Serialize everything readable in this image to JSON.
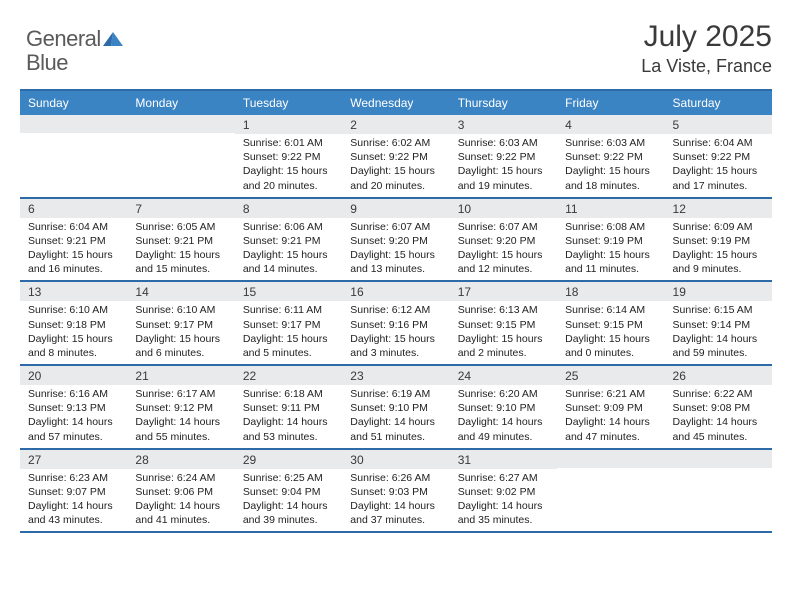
{
  "logo": {
    "part1": "General",
    "part2": "Blue"
  },
  "title": "July 2025",
  "location": "La Viste, France",
  "colors": {
    "header_bg": "#3b84c4",
    "border": "#2d6aa8",
    "daynum_bg": "#e9eaeb",
    "text": "#3a3a3a"
  },
  "day_headers": [
    "Sunday",
    "Monday",
    "Tuesday",
    "Wednesday",
    "Thursday",
    "Friday",
    "Saturday"
  ],
  "weeks": [
    [
      {
        "n": "",
        "sr": "",
        "ss": "",
        "d1": "",
        "d2": ""
      },
      {
        "n": "",
        "sr": "",
        "ss": "",
        "d1": "",
        "d2": ""
      },
      {
        "n": "1",
        "sr": "Sunrise: 6:01 AM",
        "ss": "Sunset: 9:22 PM",
        "d1": "Daylight: 15 hours",
        "d2": "and 20 minutes."
      },
      {
        "n": "2",
        "sr": "Sunrise: 6:02 AM",
        "ss": "Sunset: 9:22 PM",
        "d1": "Daylight: 15 hours",
        "d2": "and 20 minutes."
      },
      {
        "n": "3",
        "sr": "Sunrise: 6:03 AM",
        "ss": "Sunset: 9:22 PM",
        "d1": "Daylight: 15 hours",
        "d2": "and 19 minutes."
      },
      {
        "n": "4",
        "sr": "Sunrise: 6:03 AM",
        "ss": "Sunset: 9:22 PM",
        "d1": "Daylight: 15 hours",
        "d2": "and 18 minutes."
      },
      {
        "n": "5",
        "sr": "Sunrise: 6:04 AM",
        "ss": "Sunset: 9:22 PM",
        "d1": "Daylight: 15 hours",
        "d2": "and 17 minutes."
      }
    ],
    [
      {
        "n": "6",
        "sr": "Sunrise: 6:04 AM",
        "ss": "Sunset: 9:21 PM",
        "d1": "Daylight: 15 hours",
        "d2": "and 16 minutes."
      },
      {
        "n": "7",
        "sr": "Sunrise: 6:05 AM",
        "ss": "Sunset: 9:21 PM",
        "d1": "Daylight: 15 hours",
        "d2": "and 15 minutes."
      },
      {
        "n": "8",
        "sr": "Sunrise: 6:06 AM",
        "ss": "Sunset: 9:21 PM",
        "d1": "Daylight: 15 hours",
        "d2": "and 14 minutes."
      },
      {
        "n": "9",
        "sr": "Sunrise: 6:07 AM",
        "ss": "Sunset: 9:20 PM",
        "d1": "Daylight: 15 hours",
        "d2": "and 13 minutes."
      },
      {
        "n": "10",
        "sr": "Sunrise: 6:07 AM",
        "ss": "Sunset: 9:20 PM",
        "d1": "Daylight: 15 hours",
        "d2": "and 12 minutes."
      },
      {
        "n": "11",
        "sr": "Sunrise: 6:08 AM",
        "ss": "Sunset: 9:19 PM",
        "d1": "Daylight: 15 hours",
        "d2": "and 11 minutes."
      },
      {
        "n": "12",
        "sr": "Sunrise: 6:09 AM",
        "ss": "Sunset: 9:19 PM",
        "d1": "Daylight: 15 hours",
        "d2": "and 9 minutes."
      }
    ],
    [
      {
        "n": "13",
        "sr": "Sunrise: 6:10 AM",
        "ss": "Sunset: 9:18 PM",
        "d1": "Daylight: 15 hours",
        "d2": "and 8 minutes."
      },
      {
        "n": "14",
        "sr": "Sunrise: 6:10 AM",
        "ss": "Sunset: 9:17 PM",
        "d1": "Daylight: 15 hours",
        "d2": "and 6 minutes."
      },
      {
        "n": "15",
        "sr": "Sunrise: 6:11 AM",
        "ss": "Sunset: 9:17 PM",
        "d1": "Daylight: 15 hours",
        "d2": "and 5 minutes."
      },
      {
        "n": "16",
        "sr": "Sunrise: 6:12 AM",
        "ss": "Sunset: 9:16 PM",
        "d1": "Daylight: 15 hours",
        "d2": "and 3 minutes."
      },
      {
        "n": "17",
        "sr": "Sunrise: 6:13 AM",
        "ss": "Sunset: 9:15 PM",
        "d1": "Daylight: 15 hours",
        "d2": "and 2 minutes."
      },
      {
        "n": "18",
        "sr": "Sunrise: 6:14 AM",
        "ss": "Sunset: 9:15 PM",
        "d1": "Daylight: 15 hours",
        "d2": "and 0 minutes."
      },
      {
        "n": "19",
        "sr": "Sunrise: 6:15 AM",
        "ss": "Sunset: 9:14 PM",
        "d1": "Daylight: 14 hours",
        "d2": "and 59 minutes."
      }
    ],
    [
      {
        "n": "20",
        "sr": "Sunrise: 6:16 AM",
        "ss": "Sunset: 9:13 PM",
        "d1": "Daylight: 14 hours",
        "d2": "and 57 minutes."
      },
      {
        "n": "21",
        "sr": "Sunrise: 6:17 AM",
        "ss": "Sunset: 9:12 PM",
        "d1": "Daylight: 14 hours",
        "d2": "and 55 minutes."
      },
      {
        "n": "22",
        "sr": "Sunrise: 6:18 AM",
        "ss": "Sunset: 9:11 PM",
        "d1": "Daylight: 14 hours",
        "d2": "and 53 minutes."
      },
      {
        "n": "23",
        "sr": "Sunrise: 6:19 AM",
        "ss": "Sunset: 9:10 PM",
        "d1": "Daylight: 14 hours",
        "d2": "and 51 minutes."
      },
      {
        "n": "24",
        "sr": "Sunrise: 6:20 AM",
        "ss": "Sunset: 9:10 PM",
        "d1": "Daylight: 14 hours",
        "d2": "and 49 minutes."
      },
      {
        "n": "25",
        "sr": "Sunrise: 6:21 AM",
        "ss": "Sunset: 9:09 PM",
        "d1": "Daylight: 14 hours",
        "d2": "and 47 minutes."
      },
      {
        "n": "26",
        "sr": "Sunrise: 6:22 AM",
        "ss": "Sunset: 9:08 PM",
        "d1": "Daylight: 14 hours",
        "d2": "and 45 minutes."
      }
    ],
    [
      {
        "n": "27",
        "sr": "Sunrise: 6:23 AM",
        "ss": "Sunset: 9:07 PM",
        "d1": "Daylight: 14 hours",
        "d2": "and 43 minutes."
      },
      {
        "n": "28",
        "sr": "Sunrise: 6:24 AM",
        "ss": "Sunset: 9:06 PM",
        "d1": "Daylight: 14 hours",
        "d2": "and 41 minutes."
      },
      {
        "n": "29",
        "sr": "Sunrise: 6:25 AM",
        "ss": "Sunset: 9:04 PM",
        "d1": "Daylight: 14 hours",
        "d2": "and 39 minutes."
      },
      {
        "n": "30",
        "sr": "Sunrise: 6:26 AM",
        "ss": "Sunset: 9:03 PM",
        "d1": "Daylight: 14 hours",
        "d2": "and 37 minutes."
      },
      {
        "n": "31",
        "sr": "Sunrise: 6:27 AM",
        "ss": "Sunset: 9:02 PM",
        "d1": "Daylight: 14 hours",
        "d2": "and 35 minutes."
      },
      {
        "n": "",
        "sr": "",
        "ss": "",
        "d1": "",
        "d2": ""
      },
      {
        "n": "",
        "sr": "",
        "ss": "",
        "d1": "",
        "d2": ""
      }
    ]
  ]
}
